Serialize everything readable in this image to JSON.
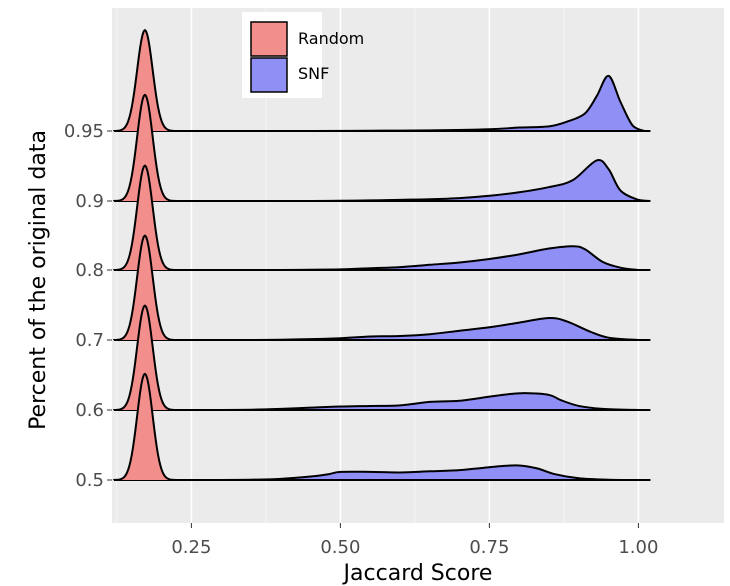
{
  "chart_data": {
    "type": "area",
    "subtype": "ridgeline-density",
    "title": "",
    "xlabel": "Jaccard Score",
    "ylabel": "Percent of the original data",
    "xlim": [
      0.12,
      1.02
    ],
    "xticks": [
      "0.25",
      "0.50",
      "0.75",
      "1.00"
    ],
    "rows": [
      "0.5",
      "0.6",
      "0.7",
      "0.8",
      "0.9",
      "0.95"
    ],
    "grid": true,
    "legend_position": "top-center",
    "colors": {
      "Random": "#f28e8c",
      "SNF": "#8f8ff5",
      "outline": "#000000",
      "panel": "#ebebeb",
      "grid": "#ffffff"
    },
    "series": [
      {
        "name": "Random",
        "peak_x": [
          0.172,
          0.172,
          0.172,
          0.172,
          0.172,
          0.172
        ],
        "sd": 0.013,
        "relative_height": [
          1.83,
          1.8,
          1.8,
          1.8,
          1.83,
          1.74
        ]
      },
      {
        "name": "SNF",
        "densities": [
          {
            "row": "0.5",
            "points": [
              [
                0.3,
                0
              ],
              [
                0.35,
                0.005
              ],
              [
                0.4,
                0.02
              ],
              [
                0.45,
                0.06
              ],
              [
                0.48,
                0.1
              ],
              [
                0.5,
                0.14
              ],
              [
                0.55,
                0.14
              ],
              [
                0.6,
                0.13
              ],
              [
                0.65,
                0.15
              ],
              [
                0.7,
                0.17
              ],
              [
                0.74,
                0.21
              ],
              [
                0.77,
                0.24
              ],
              [
                0.8,
                0.25
              ],
              [
                0.83,
                0.2
              ],
              [
                0.86,
                0.1
              ],
              [
                0.9,
                0.03
              ],
              [
                0.95,
                0.005
              ],
              [
                1.0,
                0
              ]
            ]
          },
          {
            "row": "0.6",
            "points": [
              [
                0.3,
                0
              ],
              [
                0.35,
                0.005
              ],
              [
                0.4,
                0.02
              ],
              [
                0.45,
                0.04
              ],
              [
                0.5,
                0.06
              ],
              [
                0.55,
                0.07
              ],
              [
                0.6,
                0.08
              ],
              [
                0.65,
                0.14
              ],
              [
                0.7,
                0.16
              ],
              [
                0.75,
                0.23
              ],
              [
                0.78,
                0.27
              ],
              [
                0.81,
                0.29
              ],
              [
                0.85,
                0.26
              ],
              [
                0.87,
                0.17
              ],
              [
                0.9,
                0.07
              ],
              [
                0.94,
                0.02
              ],
              [
                1.0,
                0
              ]
            ]
          },
          {
            "row": "0.7",
            "points": [
              [
                0.35,
                0
              ],
              [
                0.4,
                0.005
              ],
              [
                0.45,
                0.015
              ],
              [
                0.5,
                0.03
              ],
              [
                0.55,
                0.06
              ],
              [
                0.6,
                0.07
              ],
              [
                0.65,
                0.1
              ],
              [
                0.7,
                0.16
              ],
              [
                0.75,
                0.22
              ],
              [
                0.8,
                0.3
              ],
              [
                0.85,
                0.38
              ],
              [
                0.88,
                0.32
              ],
              [
                0.92,
                0.14
              ],
              [
                0.95,
                0.04
              ],
              [
                1.0,
                0
              ]
            ]
          },
          {
            "row": "0.8",
            "points": [
              [
                0.4,
                0
              ],
              [
                0.45,
                0.005
              ],
              [
                0.5,
                0.01
              ],
              [
                0.55,
                0.03
              ],
              [
                0.6,
                0.05
              ],
              [
                0.65,
                0.09
              ],
              [
                0.7,
                0.13
              ],
              [
                0.75,
                0.19
              ],
              [
                0.8,
                0.27
              ],
              [
                0.85,
                0.37
              ],
              [
                0.89,
                0.41
              ],
              [
                0.91,
                0.36
              ],
              [
                0.94,
                0.14
              ],
              [
                0.97,
                0.04
              ],
              [
                1.0,
                0
              ]
            ]
          },
          {
            "row": "0.9",
            "points": [
              [
                0.45,
                0
              ],
              [
                0.5,
                0.005
              ],
              [
                0.55,
                0.01
              ],
              [
                0.6,
                0.02
              ],
              [
                0.65,
                0.03
              ],
              [
                0.7,
                0.05
              ],
              [
                0.75,
                0.09
              ],
              [
                0.8,
                0.15
              ],
              [
                0.85,
                0.24
              ],
              [
                0.89,
                0.36
              ],
              [
                0.93,
                0.7
              ],
              [
                0.95,
                0.55
              ],
              [
                0.97,
                0.18
              ],
              [
                1.0,
                0.02
              ],
              [
                1.02,
                0
              ]
            ]
          },
          {
            "row": "0.95",
            "points": [
              [
                0.45,
                0
              ],
              [
                0.55,
                0.005
              ],
              [
                0.65,
                0.01
              ],
              [
                0.75,
                0.03
              ],
              [
                0.8,
                0.06
              ],
              [
                0.85,
                0.08
              ],
              [
                0.88,
                0.16
              ],
              [
                0.91,
                0.3
              ],
              [
                0.93,
                0.6
              ],
              [
                0.95,
                0.95
              ],
              [
                0.97,
                0.5
              ],
              [
                0.99,
                0.1
              ],
              [
                1.01,
                0
              ]
            ]
          }
        ]
      }
    ]
  }
}
